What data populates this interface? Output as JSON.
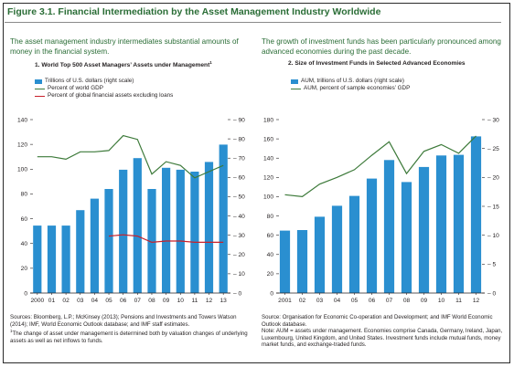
{
  "figure": {
    "title": "Figure 3.1. Financial Intermediation by the Asset Management Industry Worldwide"
  },
  "colors": {
    "bar": "#2a8fd0",
    "gdp_line": "#3d7a3a",
    "assets_line": "#c8202a",
    "title": "#2a6d36"
  },
  "left": {
    "intro": "The asset management industry intermediates substantial amounts of money in the financial system.",
    "panel_title": "1. World Top 500 Asset Managers’ Assets under Management",
    "panel_title_sup": "1",
    "legend": [
      "Trillions of U.S. dollars (right scale)",
      "Percent of world GDP",
      "Percent of global financial assets excluding loans"
    ],
    "notes_sources": "Sources: Bloomberg, L.P.; McKinsey (2013); Pensions and Investments and Towers Watson (2014); IMF, World Economic Outlook database; and IMF staff estimates.",
    "notes_footnote_mark": "1",
    "notes_footnote": "The change of asset under management is determined both by valuation changes of underlying assets as well as net inflows to funds."
  },
  "right": {
    "intro": "The growth of investment funds has been particularly pronounced among advanced economies during the past decade.",
    "panel_title": "2. Size of Investment Funds in Selected Advanced Economies",
    "legend": [
      "AUM, trillions of U.S. dollars (right scale)",
      "AUM, percent of sample economies’ GDP"
    ],
    "notes_sources": "Source: Organisation for Economic Co-operation and Development; and IMF World Economic Outlook database.",
    "notes_note": "Note: AUM = assets under management. Economies comprise Canada, Germany, Ireland, Japan, Luxembourg, United Kingdom, and United States. Investment funds include mutual funds, money market funds, and exchange-traded funds."
  },
  "chart_data": [
    {
      "type": "bar",
      "categories": [
        "2000",
        "01",
        "02",
        "03",
        "04",
        "05",
        "06",
        "07",
        "08",
        "09",
        "10",
        "11",
        "12",
        "13"
      ],
      "left_axis": {
        "ylim": [
          0,
          140
        ],
        "ticks": [
          0,
          20,
          40,
          60,
          80,
          100,
          120,
          140
        ]
      },
      "right_axis": {
        "ylim": [
          0,
          90
        ],
        "ticks": [
          0,
          10,
          20,
          30,
          40,
          50,
          60,
          70,
          80,
          90
        ]
      },
      "series": [
        {
          "name": "Trillions of U.S. dollars (right scale)",
          "kind": "bar",
          "axis": "right",
          "values": [
            35,
            35,
            35,
            43,
            49,
            54,
            64,
            70,
            54,
            65,
            64,
            63,
            68,
            77
          ]
        },
        {
          "name": "Percent of world GDP",
          "kind": "line",
          "axis": "left",
          "values": [
            110,
            110,
            108,
            114,
            114,
            115,
            127,
            124,
            96,
            106,
            103,
            93,
            98,
            103
          ]
        },
        {
          "name": "Percent of global financial assets excluding loans",
          "kind": "line",
          "axis": "left",
          "values": [
            null,
            null,
            null,
            null,
            null,
            46,
            47,
            46,
            41,
            42,
            42,
            41,
            41,
            41
          ]
        }
      ]
    },
    {
      "type": "bar",
      "categories": [
        "2001",
        "02",
        "03",
        "04",
        "05",
        "06",
        "07",
        "08",
        "09",
        "10",
        "11",
        "12"
      ],
      "left_axis": {
        "ylim": [
          0,
          180
        ],
        "ticks": [
          0,
          20,
          40,
          60,
          80,
          100,
          120,
          140,
          160,
          180
        ]
      },
      "right_axis": {
        "ylim": [
          0,
          30
        ],
        "ticks": [
          0,
          5,
          10,
          15,
          20,
          25,
          30
        ]
      },
      "series": [
        {
          "name": "AUM, trillions of U.S. dollars (right scale)",
          "kind": "bar",
          "axis": "right",
          "values": [
            10.8,
            10.9,
            13.2,
            15.1,
            16.8,
            19.8,
            23.0,
            19.2,
            21.8,
            23.8,
            23.9,
            27.1
          ]
        },
        {
          "name": "AUM, percent of sample economies’ GDP",
          "kind": "line",
          "axis": "left",
          "values": [
            102,
            100,
            113,
            120,
            128,
            143,
            157,
            124,
            147,
            154,
            145,
            163
          ]
        }
      ]
    }
  ]
}
